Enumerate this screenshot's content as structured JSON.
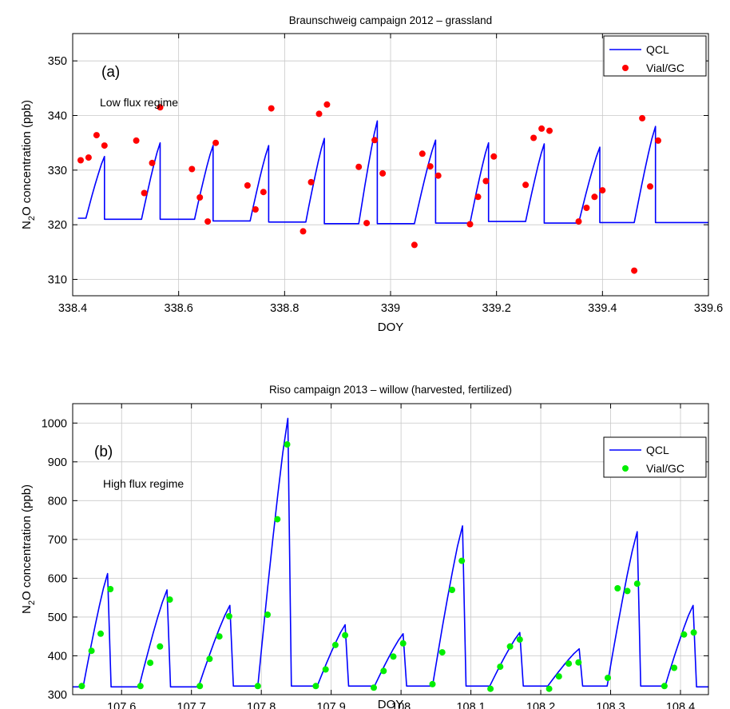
{
  "chart_data": [
    {
      "type": "line",
      "title": "Braunschweig campaign 2012 – grassland",
      "panel_label": "(a)",
      "annotation": "Low flux regime",
      "xlabel": "DOY",
      "ylabel_parts": [
        "N",
        "2",
        "O concentration (ppb)"
      ],
      "xlim": [
        338.4,
        339.6
      ],
      "ylim": [
        307,
        355
      ],
      "xticks": [
        338.4,
        338.6,
        338.8,
        339,
        339.2,
        339.4,
        339.6
      ],
      "xtick_labels": [
        "338.4",
        "338.6",
        "338.8",
        "339",
        "339.2",
        "339.4",
        "339.6"
      ],
      "yticks": [
        310,
        320,
        330,
        340,
        350
      ],
      "ytick_labels": [
        "310",
        "320",
        "330",
        "340",
        "350"
      ],
      "grid": true,
      "legend_position": "top-right",
      "series": [
        {
          "name": "QCL",
          "kind": "line",
          "color": "#0000ff",
          "cycles": [
            {
              "x0": 338.41,
              "base": 321.2,
              "rise_start": 338.425,
              "peak_x": 338.46,
              "peak": 332.5
            },
            {
              "x0": 338.46,
              "base": 321.0,
              "rise_start": 338.53,
              "peak_x": 338.565,
              "peak": 335.0
            },
            {
              "x0": 338.565,
              "base": 321.0,
              "rise_start": 338.63,
              "peak_x": 338.665,
              "peak": 334.5
            },
            {
              "x0": 338.665,
              "base": 320.7,
              "rise_start": 338.735,
              "peak_x": 338.77,
              "peak": 334.5
            },
            {
              "x0": 338.77,
              "base": 320.5,
              "rise_start": 338.84,
              "peak_x": 338.875,
              "peak": 335.8
            },
            {
              "x0": 338.875,
              "base": 320.2,
              "rise_start": 338.94,
              "peak_x": 338.975,
              "peak": 339.0
            },
            {
              "x0": 338.975,
              "base": 320.2,
              "rise_start": 339.045,
              "peak_x": 339.085,
              "peak": 335.5
            },
            {
              "x0": 339.085,
              "base": 320.3,
              "rise_start": 339.15,
              "peak_x": 339.185,
              "peak": 335.0
            },
            {
              "x0": 339.185,
              "base": 320.6,
              "rise_start": 339.255,
              "peak_x": 339.29,
              "peak": 334.8
            },
            {
              "x0": 339.29,
              "base": 320.3,
              "rise_start": 339.355,
              "peak_x": 339.395,
              "peak": 334.2
            },
            {
              "x0": 339.395,
              "base": 320.4,
              "rise_start": 339.46,
              "peak_x": 339.5,
              "peak": 338.0
            },
            {
              "x0": 339.5,
              "base": 320.4,
              "rise_start": 339.62,
              "peak_x": 339.62,
              "peak": 320.2
            }
          ]
        },
        {
          "name": "Vial/GC",
          "kind": "scatter",
          "color": "#ff0000",
          "x": [
            338.415,
            338.43,
            338.445,
            338.46,
            338.52,
            338.535,
            338.55,
            338.565,
            338.625,
            338.64,
            338.655,
            338.67,
            338.73,
            338.745,
            338.76,
            338.775,
            338.835,
            338.85,
            338.865,
            338.88,
            338.94,
            338.955,
            338.97,
            338.985,
            339.045,
            339.06,
            339.075,
            339.09,
            339.15,
            339.165,
            339.18,
            339.195,
            339.255,
            339.27,
            339.285,
            339.3,
            339.355,
            339.37,
            339.385,
            339.4,
            339.46,
            339.475,
            339.49,
            339.505
          ],
          "y": [
            331.8,
            332.3,
            336.4,
            334.5,
            335.4,
            325.8,
            331.3,
            341.5,
            330.2,
            325.0,
            320.6,
            335.0,
            327.2,
            322.8,
            326.0,
            341.3,
            318.8,
            327.8,
            340.3,
            342.0,
            330.6,
            320.3,
            335.5,
            329.4,
            316.3,
            333.0,
            330.7,
            329.0,
            320.1,
            325.1,
            328.0,
            332.5,
            327.3,
            335.9,
            337.6,
            337.2,
            320.6,
            323.1,
            325.1,
            326.3,
            311.6,
            339.5,
            327.0,
            335.4
          ]
        }
      ]
    },
    {
      "type": "line",
      "title": "Riso campaign 2013 – willow (harvested, fertilized)",
      "panel_label": "(b)",
      "annotation": "High flux regime",
      "xlabel": "DOY",
      "ylabel_parts": [
        "N",
        "2",
        "O concentration (ppb)"
      ],
      "xlim": [
        107.53,
        108.44
      ],
      "ylim": [
        300,
        1050
      ],
      "xticks": [
        107.6,
        107.7,
        107.8,
        107.9,
        108,
        108.1,
        108.2,
        108.3,
        108.4
      ],
      "xtick_labels": [
        "107.6",
        "107.7",
        "107.8",
        "107.9",
        "108",
        "108.1",
        "108.2",
        "108.3",
        "108.4"
      ],
      "yticks": [
        300,
        400,
        500,
        600,
        700,
        800,
        900,
        1000
      ],
      "ytick_labels": [
        "300",
        "400",
        "500",
        "600",
        "700",
        "800",
        "900",
        "1000"
      ],
      "grid": true,
      "legend_position": "top-right",
      "series": [
        {
          "name": "QCL",
          "kind": "line",
          "color": "#0000ff",
          "cycles": [
            {
              "x0": 107.53,
              "base": 320,
              "rise_start": 107.545,
              "peak_x": 107.58,
              "peak": 612
            },
            {
              "x0": 107.585,
              "base": 320,
              "rise_start": 107.625,
              "peak_x": 107.665,
              "peak": 570
            },
            {
              "x0": 107.67,
              "base": 320,
              "rise_start": 107.71,
              "peak_x": 107.755,
              "peak": 530
            },
            {
              "x0": 107.76,
              "base": 322,
              "rise_start": 107.795,
              "peak_x": 107.838,
              "peak": 1012
            },
            {
              "x0": 107.843,
              "base": 322,
              "rise_start": 107.88,
              "peak_x": 107.92,
              "peak": 480
            },
            {
              "x0": 107.925,
              "base": 322,
              "rise_start": 107.962,
              "peak_x": 108.003,
              "peak": 457
            },
            {
              "x0": 108.008,
              "base": 322,
              "rise_start": 108.045,
              "peak_x": 108.088,
              "peak": 735
            },
            {
              "x0": 108.093,
              "base": 322,
              "rise_start": 108.127,
              "peak_x": 108.17,
              "peak": 460
            },
            {
              "x0": 108.175,
              "base": 322,
              "rise_start": 108.21,
              "peak_x": 108.255,
              "peak": 418
            },
            {
              "x0": 108.26,
              "base": 322,
              "rise_start": 108.295,
              "peak_x": 108.338,
              "peak": 720
            },
            {
              "x0": 108.343,
              "base": 322,
              "rise_start": 108.378,
              "peak_x": 108.418,
              "peak": 530
            },
            {
              "x0": 108.423,
              "base": 320,
              "rise_start": 108.45,
              "peak_x": 108.45,
              "peak": 320
            }
          ]
        },
        {
          "name": "Vial/GC",
          "kind": "scatter",
          "color": "#00ee00",
          "x": [
            107.543,
            107.557,
            107.57,
            107.584,
            107.627,
            107.641,
            107.655,
            107.669,
            107.712,
            107.726,
            107.74,
            107.754,
            107.795,
            107.809,
            107.823,
            107.837,
            107.878,
            107.892,
            107.906,
            107.92,
            107.961,
            107.975,
            107.989,
            108.003,
            108.045,
            108.059,
            108.073,
            108.087,
            108.128,
            108.142,
            108.156,
            108.17,
            108.212,
            108.226,
            108.24,
            108.254,
            108.296,
            108.31,
            108.324,
            108.338,
            108.377,
            108.391,
            108.405,
            108.419
          ],
          "y": [
            322,
            413,
            457,
            572,
            322,
            382,
            424,
            545,
            322,
            392,
            450,
            502,
            322,
            506,
            752,
            945,
            322,
            365,
            428,
            453,
            318,
            361,
            398,
            432,
            327,
            409,
            570,
            645,
            315,
            372,
            424,
            442,
            315,
            347,
            380,
            383,
            343,
            574,
            567,
            586,
            322,
            369,
            455,
            460
          ]
        }
      ]
    }
  ]
}
